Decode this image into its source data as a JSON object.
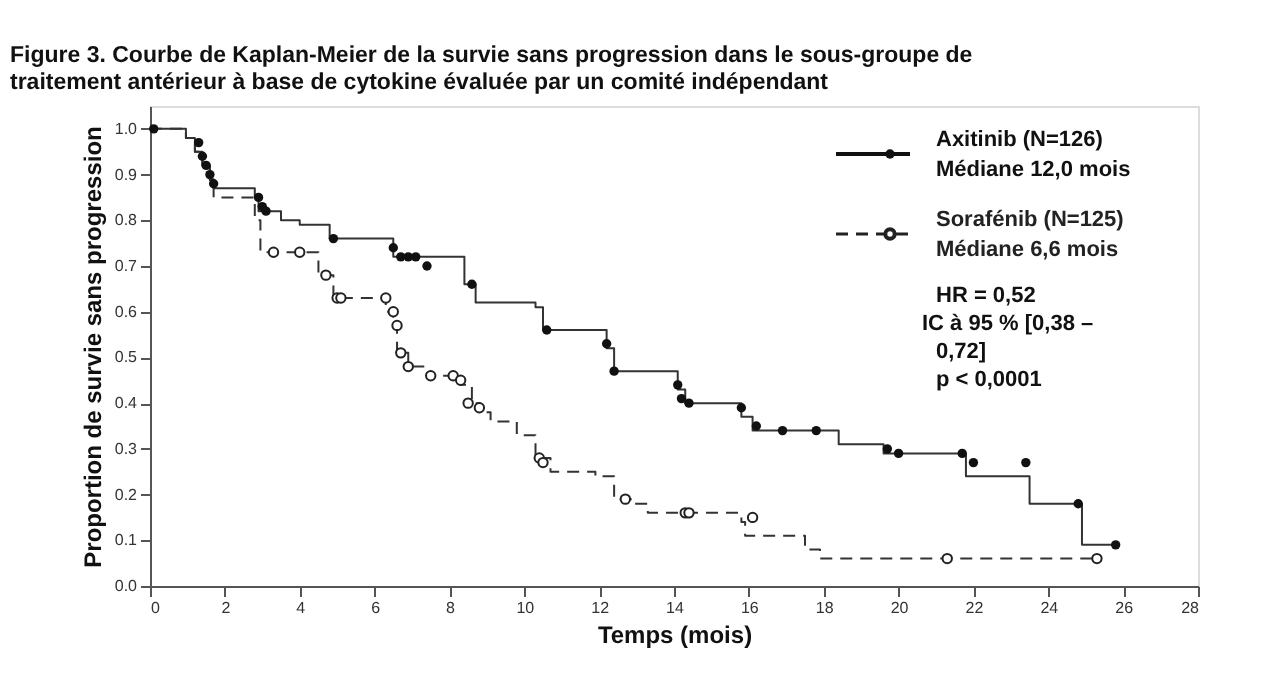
{
  "chart_data": {
    "type": "step",
    "title": [
      "Figure 3. Courbe de Kaplan-Meier de la survie sans progression dans le sous-groupe de",
      "traitement antérieur à base de cytokine évaluée par un comité indépendant"
    ],
    "xlabel": "Temps (mois)",
    "ylabel": "Proportion de survie sans progression",
    "xlim": [
      0,
      28
    ],
    "xticks": [
      0,
      2,
      4,
      6,
      8,
      10,
      12,
      14,
      16,
      18,
      20,
      22,
      24,
      26,
      28
    ],
    "ylim": [
      0,
      1.05
    ],
    "yticks": [
      {
        "value": 0,
        "label": "0.0"
      },
      {
        "value": 0.1,
        "label": "0.1"
      },
      {
        "value": 0.2,
        "label": "0.2"
      },
      {
        "value": 0.3,
        "label": "0.3"
      },
      {
        "value": 0.4,
        "label": "0.4"
      },
      {
        "value": 0.5,
        "label": "0.5"
      },
      {
        "value": 0.6,
        "label": "0.6"
      },
      {
        "value": 0.7,
        "label": "0.7"
      },
      {
        "value": 0.8,
        "label": "0.8"
      },
      {
        "value": 0.9,
        "label": "0.9"
      },
      {
        "value": 1,
        "label": "1.0"
      }
    ],
    "grid": false,
    "legend": "top right",
    "series": [
      {
        "type": "step",
        "color": "#333333",
        "line_style": "solid",
        "x": [
          0,
          0.96,
          1.2,
          1.4,
          1.6,
          1.7,
          2.8,
          2.9,
          3.5,
          4.0,
          4.8,
          6.5,
          8.4,
          8.7,
          10.3,
          10.5,
          12.2,
          12.4,
          14.1,
          14.3,
          15.8,
          16.1,
          18.4,
          19.6,
          21.8,
          23.5,
          24.9,
          25.8
        ],
        "values": [
          1.0,
          0.98,
          0.95,
          0.92,
          0.89,
          0.87,
          0.85,
          0.82,
          0.8,
          0.79,
          0.76,
          0.72,
          0.66,
          0.62,
          0.61,
          0.56,
          0.52,
          0.47,
          0.43,
          0.4,
          0.37,
          0.34,
          0.31,
          0.29,
          0.24,
          0.18,
          0.09,
          0.09
        ]
      },
      {
        "type": "step",
        "color": "#333333",
        "line_style": "dashed",
        "x": [
          0,
          0.96,
          1.2,
          1.4,
          1.6,
          1.7,
          2.8,
          2.95,
          4.5,
          4.9,
          6.3,
          6.5,
          6.6,
          6.9,
          7.4,
          8.3,
          8.6,
          8.8,
          9.1,
          9.8,
          10.3,
          10.7,
          11.9,
          12.4,
          12.9,
          13.3,
          15.8,
          15.9,
          17.5,
          17.9,
          25.3
        ],
        "values": [
          1.0,
          0.98,
          0.95,
          0.92,
          0.88,
          0.85,
          0.8,
          0.73,
          0.68,
          0.63,
          0.6,
          0.57,
          0.51,
          0.48,
          0.46,
          0.44,
          0.4,
          0.38,
          0.36,
          0.33,
          0.28,
          0.25,
          0.24,
          0.19,
          0.18,
          0.16,
          0.14,
          0.11,
          0.08,
          0.06,
          0.06
        ]
      },
      {
        "name": "Axitinib (N=126)\nMédiane 12,0 mois",
        "type": "scatter",
        "color": "#111111",
        "marker": "circle",
        "line_style": "solid",
        "x": [
          0.1,
          1.3,
          1.4,
          1.5,
          1.6,
          1.7,
          2.9,
          3.0,
          3.1,
          4.9,
          6.5,
          6.7,
          6.9,
          7.1,
          7.4,
          8.6,
          10.6,
          12.2,
          12.4,
          14.1,
          14.2,
          14.4,
          15.8,
          16.2,
          16.9,
          17.8,
          19.7,
          20.0,
          21.7,
          22.0,
          23.4,
          24.8,
          25.8
        ],
        "values": [
          1.0,
          0.97,
          0.94,
          0.92,
          0.9,
          0.88,
          0.85,
          0.83,
          0.82,
          0.76,
          0.74,
          0.72,
          0.72,
          0.72,
          0.7,
          0.66,
          0.56,
          0.53,
          0.47,
          0.44,
          0.41,
          0.4,
          0.39,
          0.35,
          0.34,
          0.34,
          0.3,
          0.29,
          0.29,
          0.27,
          0.27,
          0.18,
          0.09
        ]
      },
      {
        "name": "Sorafénib (N=125)\nMédiane 6,6 mois",
        "type": "scatter",
        "color": "#222222",
        "marker": "circle",
        "line_style": "dashed",
        "x": [
          3.3,
          4.0,
          4.7,
          5.0,
          5.1,
          6.3,
          6.5,
          6.6,
          6.7,
          6.9,
          7.5,
          8.1,
          8.3,
          8.5,
          8.8,
          10.4,
          10.5,
          12.7,
          14.3,
          14.4,
          16.1,
          21.3,
          25.3
        ],
        "values": [
          0.73,
          0.73,
          0.68,
          0.63,
          0.63,
          0.63,
          0.6,
          0.57,
          0.51,
          0.48,
          0.46,
          0.46,
          0.45,
          0.4,
          0.39,
          0.28,
          0.27,
          0.19,
          0.16,
          0.16,
          0.15,
          0.06,
          0.06
        ]
      }
    ],
    "annotations": [
      "HR = 0,52",
      "IC à 95 % [0,38 –",
      "0,72]",
      "p < 0,0001"
    ]
  }
}
